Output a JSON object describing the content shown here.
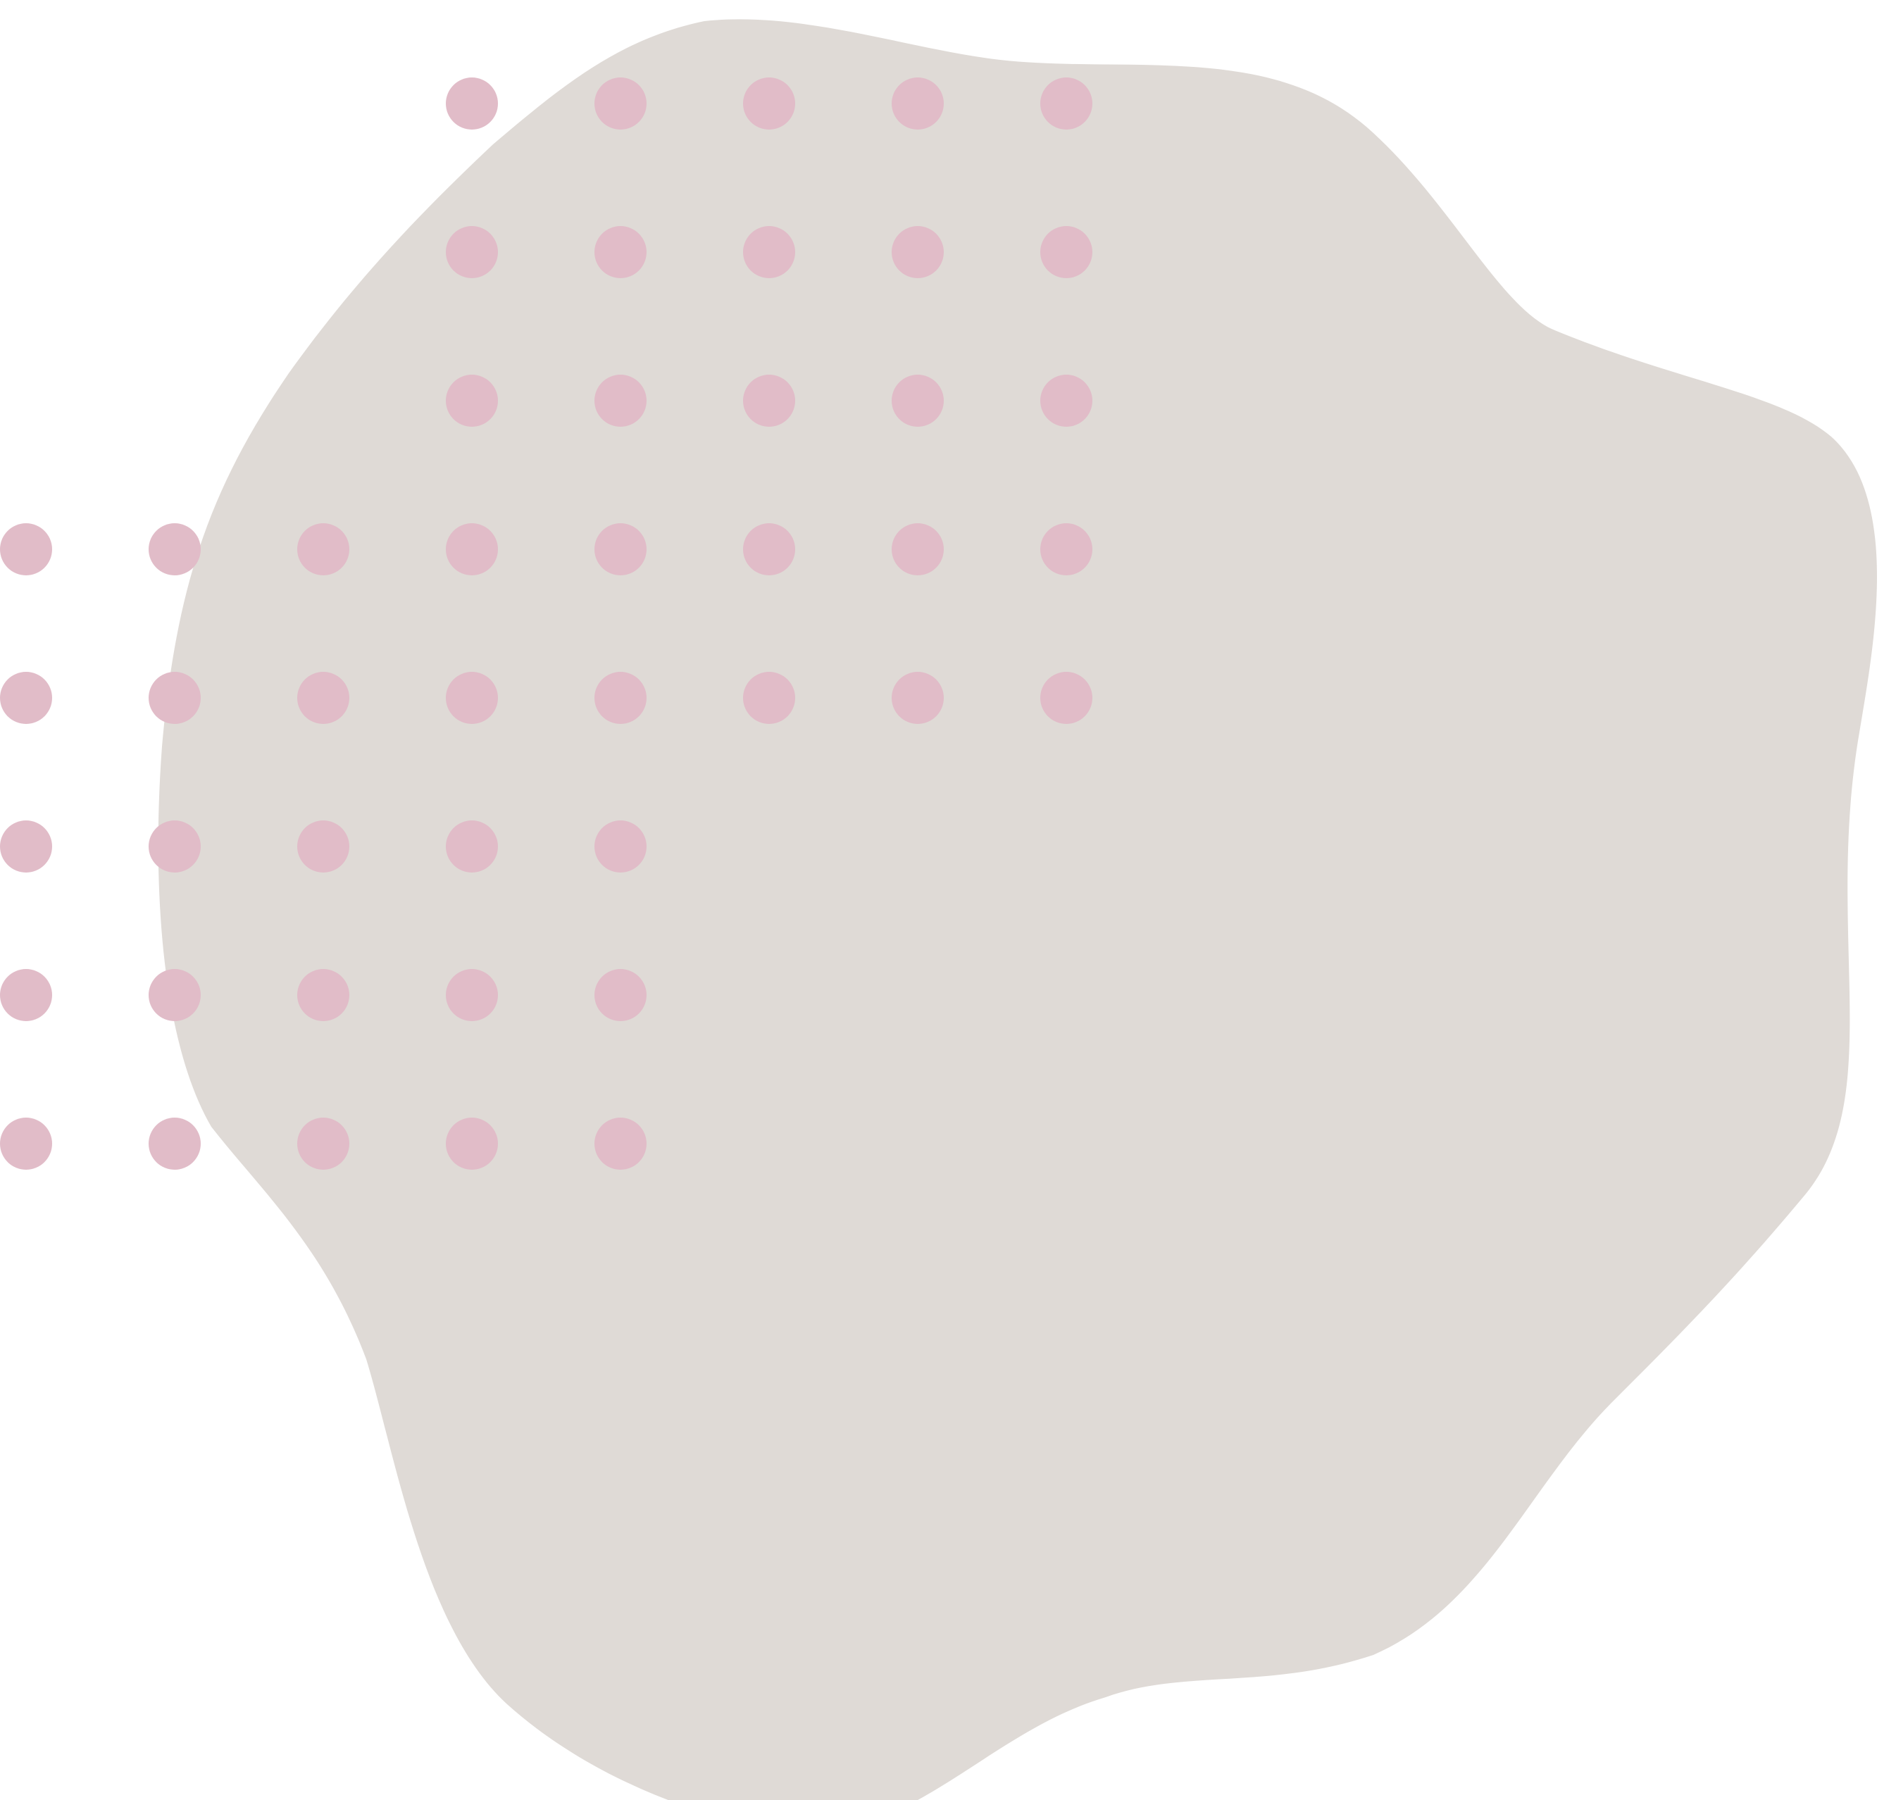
{
  "colors": {
    "background": "#ffffff",
    "blob": "#dfdad6",
    "dots": "#e1bcc8"
  },
  "shapes": {
    "blob": {
      "name": "organic-blob",
      "description_icon": "blob-shape"
    },
    "dot_grid": {
      "name": "dot-grid",
      "rows": [
        {
          "row": 0,
          "cols": [
            3,
            4,
            5,
            6,
            7
          ]
        },
        {
          "row": 1,
          "cols": [
            3,
            4,
            5,
            6,
            7
          ]
        },
        {
          "row": 2,
          "cols": [
            3,
            4,
            5,
            6,
            7
          ]
        },
        {
          "row": 3,
          "cols": [
            0,
            1,
            2,
            3,
            4,
            5,
            6,
            7
          ]
        },
        {
          "row": 4,
          "cols": [
            0,
            1,
            2,
            3,
            4,
            5,
            6,
            7
          ]
        },
        {
          "row": 5,
          "cols": [
            0,
            1,
            2,
            3,
            4
          ]
        },
        {
          "row": 6,
          "cols": [
            0,
            1,
            2,
            3,
            4
          ]
        },
        {
          "row": 7,
          "cols": [
            0,
            1,
            2,
            3,
            4
          ]
        }
      ]
    }
  }
}
